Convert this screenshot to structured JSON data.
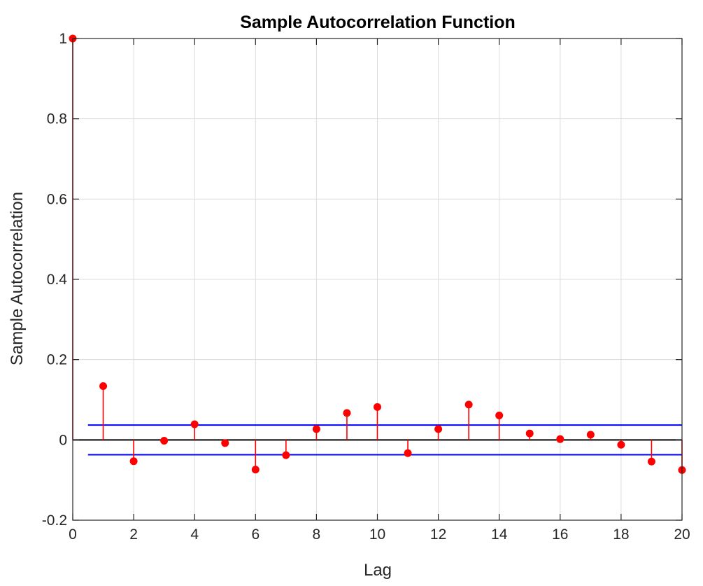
{
  "chart_data": {
    "type": "stem",
    "title": "Sample Autocorrelation Function",
    "xlabel": "Lag",
    "ylabel": "Sample Autocorrelation",
    "xlim": [
      0,
      20
    ],
    "ylim": [
      -0.2,
      1
    ],
    "xticks": [
      0,
      2,
      4,
      6,
      8,
      10,
      12,
      14,
      16,
      18,
      20
    ],
    "yticks": [
      -0.2,
      0,
      0.2,
      0.4,
      0.6,
      0.8,
      1
    ],
    "ytick_labels": [
      "-0.2",
      "0",
      "0.2",
      "0.4",
      "0.6",
      "0.8",
      "1"
    ],
    "grid": true,
    "lags": [
      0,
      1,
      2,
      3,
      4,
      5,
      6,
      7,
      8,
      9,
      10,
      11,
      12,
      13,
      14,
      15,
      16,
      17,
      18,
      19,
      20
    ],
    "values": [
      1.0,
      0.134,
      -0.053,
      -0.002,
      0.039,
      -0.008,
      -0.074,
      -0.038,
      0.027,
      0.067,
      0.082,
      -0.033,
      0.027,
      0.088,
      0.061,
      0.016,
      0.002,
      0.013,
      -0.012,
      -0.054,
      -0.075
    ],
    "confidence_bounds": {
      "upper": 0.037,
      "lower": -0.037,
      "x_start": 0.5,
      "x_end": 20
    },
    "colors": {
      "stem": "#ff0000",
      "bounds": "#0000ff",
      "zero_line": "#000000",
      "grid": "#dcdcdc",
      "axes": "#262626"
    }
  }
}
